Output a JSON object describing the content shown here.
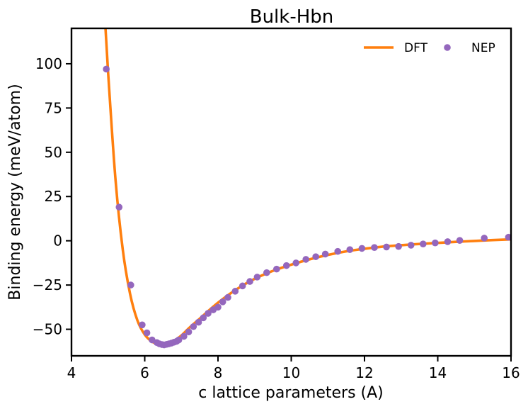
{
  "chart_data": {
    "type": "line",
    "title": "Bulk-Hbn",
    "xlabel": "c lattice parameters (A)",
    "ylabel": "Binding energy (meV/atom)",
    "xlim": [
      4,
      16
    ],
    "ylim": [
      -65,
      120
    ],
    "xticks": [
      4,
      6,
      8,
      10,
      12,
      14,
      16
    ],
    "yticks": [
      -50,
      -25,
      0,
      25,
      50,
      75,
      100
    ],
    "xtick_labels": [
      "4",
      "6",
      "8",
      "10",
      "12",
      "14",
      "16"
    ],
    "ytick_labels": [
      "−50",
      "−25",
      "0",
      "25",
      "50",
      "75",
      "100"
    ],
    "grid": false,
    "legend_position": "top-right",
    "series": [
      {
        "name": "DFT",
        "style": "line",
        "color": "#ff7f0e",
        "x": [
          4.9,
          5.0,
          5.2,
          5.4,
          5.6,
          5.8,
          6.0,
          6.2,
          6.4,
          6.5,
          6.6,
          6.8,
          7.0,
          7.2,
          7.5,
          8.0,
          8.5,
          9.0,
          9.5,
          10.0,
          10.5,
          11.0,
          11.5,
          12.0,
          12.5,
          13.0,
          13.5,
          14.0,
          14.5,
          15.0,
          15.5,
          16.0
        ],
        "y": [
          130,
          95,
          35,
          -5,
          -30,
          -45,
          -53,
          -57,
          -58.5,
          -58.6,
          -58.3,
          -56.5,
          -53.5,
          -49.5,
          -44,
          -35,
          -27.5,
          -21.5,
          -17,
          -13.5,
          -10.5,
          -8,
          -6,
          -4.5,
          -3.3,
          -2.5,
          -1.8,
          -1.2,
          -0.6,
          -0.1,
          0.4,
          0.8
        ]
      },
      {
        "name": "NEP",
        "style": "scatter",
        "color": "#9467bd",
        "x": [
          4.95,
          5.3,
          5.62,
          5.93,
          6.06,
          6.2,
          6.33,
          6.4,
          6.47,
          6.53,
          6.6,
          6.66,
          6.73,
          6.8,
          6.87,
          6.93,
          7.07,
          7.2,
          7.33,
          7.47,
          7.6,
          7.73,
          7.87,
          8.0,
          8.13,
          8.27,
          8.47,
          8.67,
          8.87,
          9.07,
          9.33,
          9.6,
          9.87,
          10.13,
          10.4,
          10.67,
          10.93,
          11.27,
          11.6,
          11.93,
          12.27,
          12.6,
          12.93,
          13.27,
          13.6,
          13.93,
          14.27,
          14.6,
          15.27,
          15.93
        ],
        "y": [
          97,
          19,
          -25,
          -47.5,
          -52,
          -56,
          -57.5,
          -58.2,
          -58.6,
          -58.8,
          -58.5,
          -58.2,
          -57.8,
          -57.3,
          -56.8,
          -56,
          -54,
          -51.5,
          -48.5,
          -46,
          -43.5,
          -41,
          -39,
          -37.5,
          -34.5,
          -32,
          -28.5,
          -25.5,
          -23,
          -20.5,
          -18,
          -16,
          -14,
          -12.5,
          -10.5,
          -9,
          -7.5,
          -6,
          -5,
          -4.3,
          -3.8,
          -3.5,
          -3.2,
          -2.5,
          -1.8,
          -1.2,
          -0.5,
          0.2,
          1.5,
          2
        ]
      }
    ]
  }
}
